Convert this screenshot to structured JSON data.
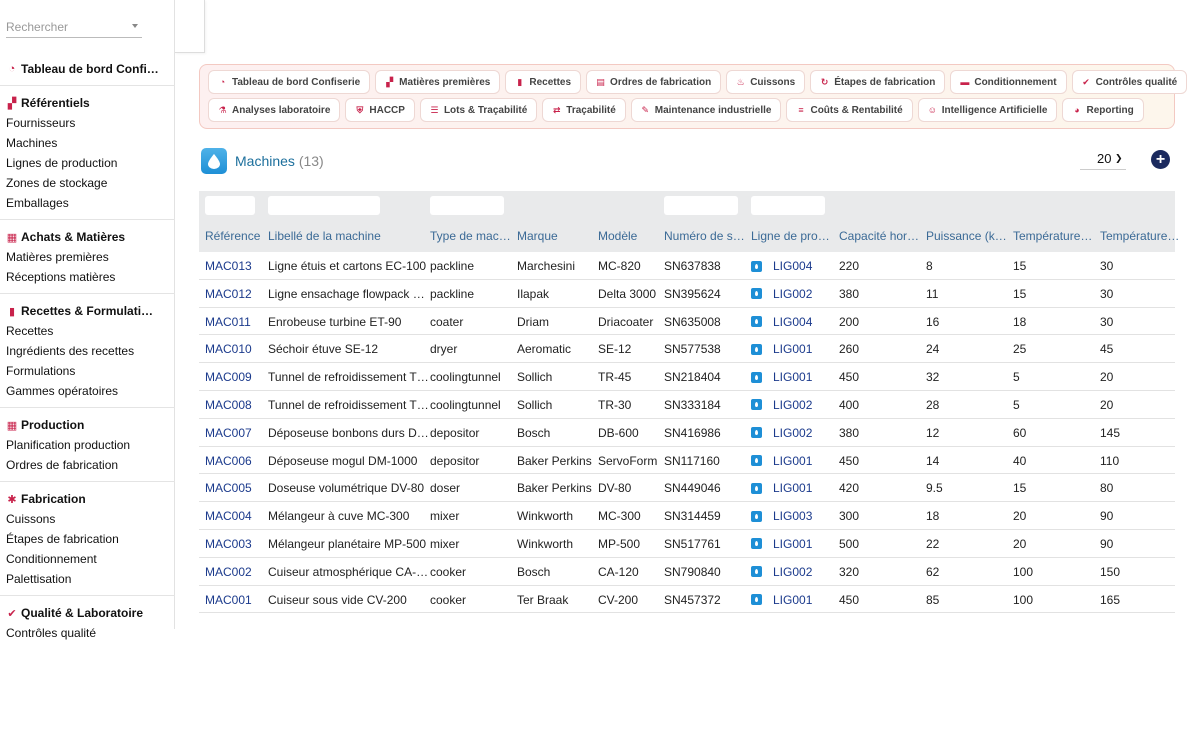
{
  "search": {
    "placeholder": "Rechercher"
  },
  "sidebar": {
    "sections": [
      {
        "title": "Tableau de bord Confi…",
        "icon": "dashboard-icon",
        "items": []
      },
      {
        "title": "Référentiels",
        "icon": "sitemap-icon",
        "items": [
          "Fournisseurs",
          "Machines",
          "Lignes de production",
          "Zones de stockage",
          "Emballages"
        ]
      },
      {
        "title": "Achats & Matières",
        "icon": "boxes-icon",
        "items": [
          "Matières premières",
          "Réceptions matières"
        ]
      },
      {
        "title": "Recettes & Formulati…",
        "icon": "book-icon",
        "items": [
          "Recettes",
          "Ingrédients des recettes",
          "Formulations",
          "Gammes opératoires"
        ]
      },
      {
        "title": "Production",
        "icon": "calendar-icon",
        "items": [
          "Planification production",
          "Ordres de fabrication"
        ]
      },
      {
        "title": "Fabrication",
        "icon": "gears-icon",
        "items": [
          "Cuissons",
          "Étapes de fabrication",
          "Conditionnement",
          "Palettisation"
        ]
      },
      {
        "title": "Qualité & Laboratoire",
        "icon": "check-circle-icon",
        "items": [
          "Contrôles qualité"
        ]
      }
    ]
  },
  "nav_chips": [
    [
      {
        "label": "Tableau de bord Confiserie",
        "icon": "dashboard-icon"
      },
      {
        "label": "Matières premières",
        "icon": "sitemap-icon"
      },
      {
        "label": "Recettes",
        "icon": "book-icon"
      },
      {
        "label": "Ordres de fabrication",
        "icon": "clipboard-icon"
      },
      {
        "label": "Cuissons",
        "icon": "flame-icon"
      },
      {
        "label": "Étapes de fabrication",
        "icon": "refresh-icon"
      },
      {
        "label": "Conditionnement",
        "icon": "box-icon"
      },
      {
        "label": "Contrôles qualité",
        "icon": "check-circle-icon"
      }
    ],
    [
      {
        "label": "Analyses laboratoire",
        "icon": "microscope-icon"
      },
      {
        "label": "HACCP",
        "icon": "shield-icon"
      },
      {
        "label": "Lots & Traçabilité",
        "icon": "list-icon"
      },
      {
        "label": "Traçabilité",
        "icon": "network-icon"
      },
      {
        "label": "Maintenance industrielle",
        "icon": "wrench-icon"
      },
      {
        "label": "Coûts & Rentabilité",
        "icon": "coins-icon"
      },
      {
        "label": "Intelligence Artificielle",
        "icon": "robot-icon"
      },
      {
        "label": "Reporting",
        "icon": "pie-chart-icon"
      }
    ]
  ],
  "header": {
    "title": "Machines",
    "count": "(13)",
    "page_size": "20"
  },
  "table": {
    "columns": [
      "Référence",
      "Libellé de la machine",
      "Type de mac…",
      "Marque",
      "Modèle",
      "Numéro de s…",
      "Ligne de pro…",
      "Capacité hor…",
      "Puissance (k…",
      "Température…",
      "Température…"
    ],
    "rows": [
      [
        "MAC013",
        "Ligne étuis et cartons EC-100",
        "packline",
        "Marchesini",
        "MC-820",
        "SN637838",
        "LIG004",
        "220",
        "8",
        "15",
        "30"
      ],
      [
        "MAC012",
        "Ligne ensachage flowpack …",
        "packline",
        "Ilapak",
        "Delta 3000",
        "SN395624",
        "LIG002",
        "380",
        "11",
        "15",
        "30"
      ],
      [
        "MAC011",
        "Enrobeuse turbine ET-90",
        "coater",
        "Driam",
        "Driacoater",
        "SN635008",
        "LIG004",
        "200",
        "16",
        "18",
        "30"
      ],
      [
        "MAC010",
        "Séchoir étuve SE-12",
        "dryer",
        "Aeromatic",
        "SE-12",
        "SN577538",
        "LIG001",
        "260",
        "24",
        "25",
        "45"
      ],
      [
        "MAC009",
        "Tunnel de refroidissement T…",
        "coolingtunnel",
        "Sollich",
        "TR-45",
        "SN218404",
        "LIG001",
        "450",
        "32",
        "5",
        "20"
      ],
      [
        "MAC008",
        "Tunnel de refroidissement T…",
        "coolingtunnel",
        "Sollich",
        "TR-30",
        "SN333184",
        "LIG002",
        "400",
        "28",
        "5",
        "20"
      ],
      [
        "MAC007",
        "Déposeuse bonbons durs D…",
        "depositor",
        "Bosch",
        "DB-600",
        "SN416986",
        "LIG002",
        "380",
        "12",
        "60",
        "145"
      ],
      [
        "MAC006",
        "Déposeuse mogul DM-1000",
        "depositor",
        "Baker Perkins",
        "ServoForm",
        "SN117160",
        "LIG001",
        "450",
        "14",
        "40",
        "110"
      ],
      [
        "MAC005",
        "Doseuse volumétrique DV-80",
        "doser",
        "Baker Perkins",
        "DV-80",
        "SN449046",
        "LIG001",
        "420",
        "9.5",
        "15",
        "80"
      ],
      [
        "MAC004",
        "Mélangeur à cuve MC-300",
        "mixer",
        "Winkworth",
        "MC-300",
        "SN314459",
        "LIG003",
        "300",
        "18",
        "20",
        "90"
      ],
      [
        "MAC003",
        "Mélangeur planétaire MP-500",
        "mixer",
        "Winkworth",
        "MP-500",
        "SN517761",
        "LIG001",
        "500",
        "22",
        "20",
        "90"
      ],
      [
        "MAC002",
        "Cuiseur atmosphérique CA-…",
        "cooker",
        "Bosch",
        "CA-120",
        "SN790840",
        "LIG002",
        "320",
        "62",
        "100",
        "150"
      ],
      [
        "MAC001",
        "Cuiseur sous vide CV-200",
        "cooker",
        "Ter Braak",
        "CV-200",
        "SN457372",
        "LIG001",
        "450",
        "85",
        "100",
        "165"
      ]
    ]
  },
  "colors": {
    "accent": "#c8224b",
    "link": "#1b3a8c",
    "header_text": "#3b6a96",
    "add_button": "#1b2a5e",
    "page_icon": "#1e8fd6"
  }
}
